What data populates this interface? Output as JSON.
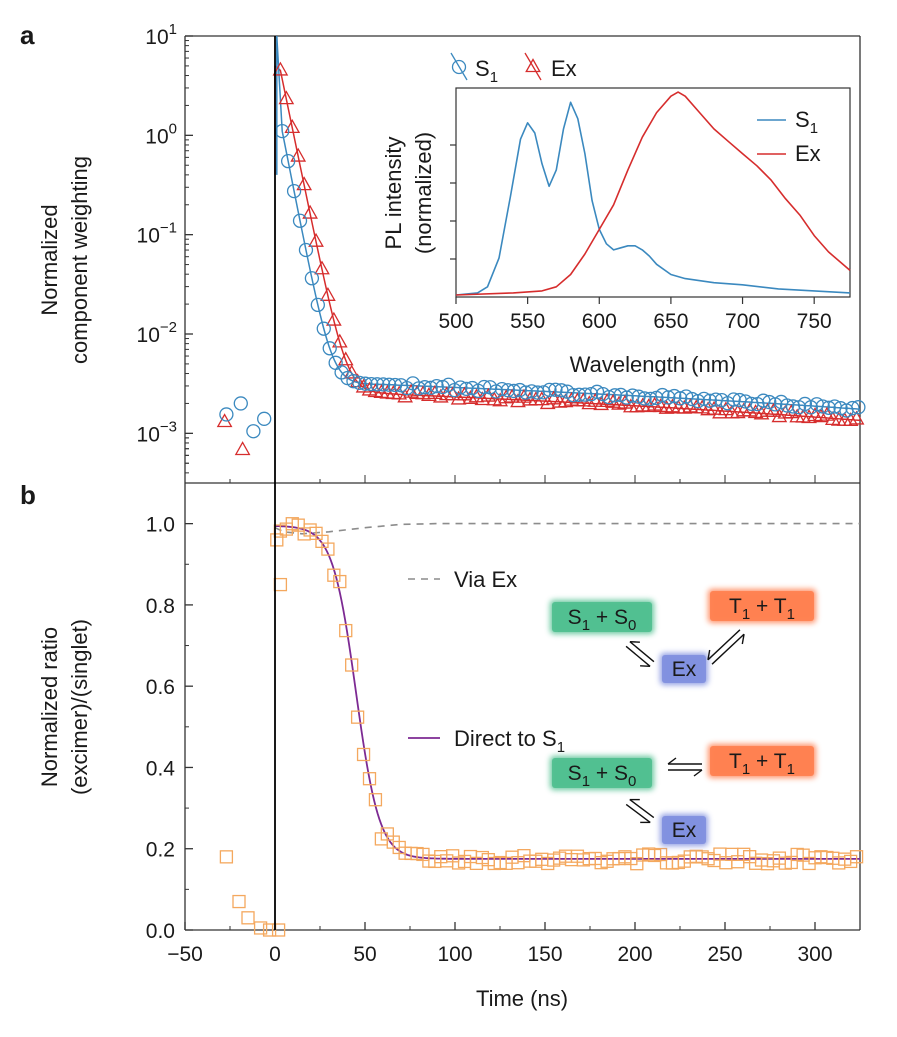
{
  "colors": {
    "S1": "#3b89bf",
    "Ex": "#d62d2d",
    "ratio": "#f4a85e",
    "direct_fit": "#7d2a93",
    "via_ex": "#8c8c8c",
    "box_s": "#4fbf8f",
    "box_t": "#ff7f4f",
    "box_ex": "#7f8fdf"
  },
  "chart_data": [
    {
      "panel": "a",
      "type": "scatter",
      "xlabel": "",
      "ylabel": [
        "Normalized",
        "component weighting"
      ],
      "xlim": [
        -50,
        325
      ],
      "ylim_log10": [
        -3.5,
        1
      ],
      "yscale": "log",
      "yticks": [
        {
          "exp": 1,
          "label": "10",
          "sup": "1"
        },
        {
          "exp": 0,
          "label": "10",
          "sup": "0"
        },
        {
          "exp": -1,
          "label": "10",
          "sup": "−1"
        },
        {
          "exp": -2,
          "label": "10",
          "sup": "−2"
        },
        {
          "exp": -3,
          "label": "10",
          "sup": "−3"
        }
      ],
      "legend": {
        "placement": "top",
        "entries": [
          {
            "key": "S1",
            "main": "S",
            "sub": "1"
          },
          {
            "key": "Ex",
            "main": "Ex",
            "sub": ""
          }
        ]
      },
      "series": [
        {
          "key": "S1",
          "marker": "circle",
          "pre_points": [
            {
              "x": -27,
              "y": 0.00155
            },
            {
              "x": -19,
              "y": 0.002
            },
            {
              "x": -12,
              "y": 0.00105
            },
            {
              "x": -6,
              "y": 0.0014
            }
          ],
          "decay_model": {
            "peak_time": 4,
            "peak_value": 1.1,
            "decay_per_ns": 0.212,
            "baseline": 0.0031,
            "baseline_end": 0.00175,
            "point_spacing_ns": 3.3,
            "t_end": 325
          },
          "fit_spike": {
            "x": 1,
            "y": 10
          }
        },
        {
          "key": "Ex",
          "marker": "triangle",
          "pre_points": [
            {
              "x": -28,
              "y": 0.0013
            },
            {
              "x": -18,
              "y": 0.00068
            }
          ],
          "decay_model": {
            "peak_time": 3,
            "peak_value": 4.5,
            "decay_per_ns": 0.202,
            "baseline": 0.0025,
            "baseline_end": 0.00135,
            "point_spacing_ns": 3.3,
            "t_end": 325
          },
          "fit_spike": {
            "x": 0,
            "y": 5
          }
        }
      ]
    },
    {
      "panel": "a-inset",
      "type": "line",
      "xlabel": "Wavelength (nm)",
      "ylabel": [
        "PL intensity",
        "(normalized)"
      ],
      "xlim": [
        500,
        775
      ],
      "xticks": [
        500,
        550,
        600,
        650,
        700,
        750
      ],
      "ylim": [
        0,
        1
      ],
      "legend": {
        "placement": "top-right",
        "entries": [
          {
            "key": "S1",
            "main": "S",
            "sub": "1"
          },
          {
            "key": "Ex",
            "main": "Ex",
            "sub": ""
          }
        ]
      },
      "series": [
        {
          "key": "S1",
          "x": [
            500,
            515,
            522,
            530,
            538,
            545,
            550,
            555,
            560,
            565,
            570,
            575,
            580,
            585,
            590,
            595,
            600,
            605,
            610,
            615,
            620,
            625,
            630,
            635,
            640,
            650,
            660,
            680,
            700,
            725,
            750,
            775
          ],
          "y": [
            0.0,
            0.01,
            0.04,
            0.18,
            0.48,
            0.76,
            0.84,
            0.79,
            0.64,
            0.53,
            0.61,
            0.81,
            0.94,
            0.86,
            0.69,
            0.46,
            0.32,
            0.25,
            0.22,
            0.23,
            0.24,
            0.24,
            0.22,
            0.19,
            0.15,
            0.1,
            0.08,
            0.06,
            0.05,
            0.03,
            0.02,
            0.01
          ]
        },
        {
          "key": "Ex",
          "x": [
            500,
            540,
            560,
            570,
            580,
            590,
            600,
            610,
            620,
            630,
            640,
            650,
            655,
            660,
            670,
            680,
            690,
            700,
            710,
            720,
            730,
            740,
            750,
            760,
            775
          ],
          "y": [
            0.0,
            0.01,
            0.02,
            0.04,
            0.1,
            0.2,
            0.32,
            0.44,
            0.61,
            0.77,
            0.89,
            0.97,
            0.99,
            0.97,
            0.89,
            0.81,
            0.75,
            0.69,
            0.63,
            0.56,
            0.47,
            0.39,
            0.29,
            0.21,
            0.12
          ]
        }
      ]
    },
    {
      "panel": "b",
      "type": "scatter",
      "xlabel": "Time (ns)",
      "ylabel": [
        "Normalized ratio",
        "(excimer)/(singlet)"
      ],
      "xlim": [
        -50,
        325
      ],
      "xticks": [
        -50,
        0,
        50,
        100,
        150,
        200,
        250,
        300
      ],
      "ylim": [
        0,
        1.1
      ],
      "yticks": [
        0.0,
        0.2,
        0.4,
        0.6,
        0.8,
        1.0
      ],
      "ratio_points": {
        "pre": [
          {
            "x": -27,
            "y": 0.18
          },
          {
            "x": -20,
            "y": 0.07
          },
          {
            "x": -15,
            "y": 0.03
          },
          {
            "x": -8,
            "y": 0.005
          },
          {
            "x": -3,
            "y": 0.0
          },
          {
            "x": 2,
            "y": 0.0
          }
        ],
        "model": {
          "x0": 45,
          "width": 6.5,
          "top": 0.995,
          "bottom": 0.175,
          "t_start": 3,
          "t_end": 325,
          "point_spacing_ns": 3.3,
          "noise": 0.012
        },
        "extra": [
          {
            "x": 3,
            "y": 0.85
          },
          {
            "x": 1,
            "y": 0.96
          }
        ]
      },
      "lines": [
        {
          "key": "direct",
          "label_main": "Direct to S",
          "label_sub": "1",
          "model": "sigmoid"
        },
        {
          "key": "via",
          "label_main": "Via Ex",
          "label_sub": "",
          "x": [
            0,
            5,
            15,
            30,
            50,
            70,
            90,
            130,
            200,
            325
          ],
          "y": [
            0.99,
            0.98,
            0.975,
            0.98,
            0.99,
            0.998,
            1.0,
            1.0,
            1.0,
            1.0
          ]
        }
      ]
    }
  ],
  "panel_b_schemes": [
    {
      "S": {
        "a": "S",
        "as": "1",
        "b": "S",
        "bs": "0"
      },
      "T": {
        "a": "T",
        "as": "1",
        "b": "T",
        "bs": "1"
      },
      "Ex": "Ex"
    },
    {
      "S": {
        "a": "S",
        "as": "1",
        "b": "S",
        "bs": "0"
      },
      "T": {
        "a": "T",
        "as": "1",
        "b": "T",
        "bs": "1"
      },
      "Ex": "Ex"
    }
  ]
}
